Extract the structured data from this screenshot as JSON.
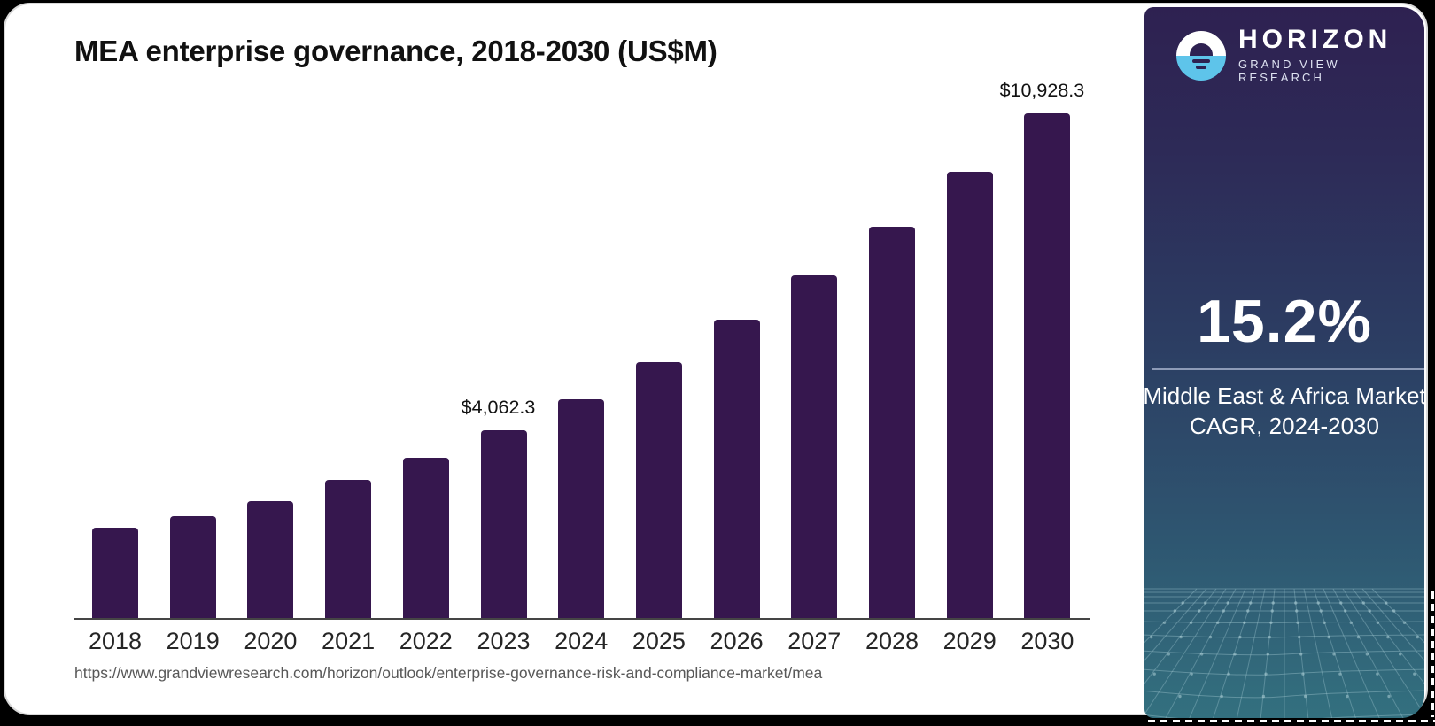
{
  "header": {
    "title": "MEA enterprise governance, 2018-2030 (US$M)"
  },
  "source_url": "https://www.grandviewresearch.com/horizon/outlook/enterprise-governance-risk-and-compliance-market/mea",
  "chart_data": {
    "type": "bar",
    "title": "MEA enterprise governance, 2018-2030 (US$M)",
    "categories": [
      "2018",
      "2019",
      "2020",
      "2021",
      "2022",
      "2023",
      "2024",
      "2025",
      "2026",
      "2027",
      "2028",
      "2029",
      "2030"
    ],
    "values": [
      1950,
      2200,
      2540,
      3000,
      3470,
      4062.3,
      4740,
      5550,
      6470,
      7430,
      8470,
      9660,
      10928.3
    ],
    "labeled_points": [
      {
        "category": "2023",
        "text": "$4,062.3"
      },
      {
        "category": "2030",
        "text": "$10,928.3"
      }
    ],
    "xlabel": "",
    "ylabel": "",
    "ylim": [
      0,
      10928.3
    ],
    "gridlines": false,
    "legend": "none",
    "bar_color": "#36174E"
  },
  "sidebar": {
    "logo": {
      "brand": "HORIZON",
      "subbrand": "GRAND VIEW RESEARCH"
    },
    "cagr": {
      "value": "15.2%",
      "label_line1": "Middle East & Africa Market",
      "label_line2": "CAGR, 2024-2030"
    },
    "colors": {
      "top": "#2E2151",
      "middle": "#2C3E63",
      "bottom": "#33707F",
      "logo_blue": "#5EC4EA"
    }
  }
}
